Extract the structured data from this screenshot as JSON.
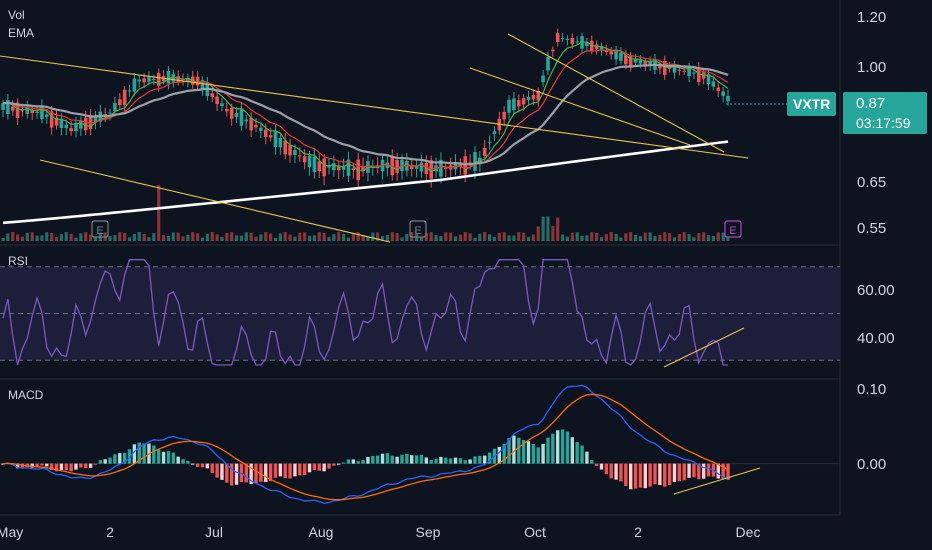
{
  "panes": {
    "price": {
      "labels": [
        "Vol",
        "EMA"
      ],
      "ticks": [
        "1.20",
        "1.00",
        "0.65",
        "0.55"
      ]
    },
    "rsi": {
      "label": "RSI",
      "ticks": [
        "60.00",
        "40.00"
      ]
    },
    "macd": {
      "label": "MACD",
      "ticks": [
        "0.10",
        "0.00"
      ]
    }
  },
  "symbol_tag": "VXTR",
  "last_price": "0.87",
  "countdown": "03:17:59",
  "earnings_markers": [
    "E",
    "E",
    "E"
  ],
  "x_axis": [
    "May",
    "2",
    "Jul",
    "Aug",
    "Sep",
    "Oct",
    "2",
    "Dec"
  ],
  "chart_data": {
    "type": "line",
    "title": "",
    "xlabel": "",
    "ylabel": "",
    "price_ylim": [
      0.52,
      1.25
    ],
    "series": [
      {
        "name": "EMA",
        "values": [
          0.86,
          0.85,
          0.84,
          0.84,
          0.85,
          0.88,
          0.9,
          0.92,
          0.93,
          0.9,
          0.85,
          0.8,
          0.76,
          0.73,
          0.71,
          0.7,
          0.7,
          0.69,
          0.7,
          0.72,
          0.75,
          0.8,
          0.87,
          0.95,
          1.02,
          1.03,
          1.02,
          1.0,
          0.98,
          0.95,
          0.92,
          0.9,
          0.89,
          0.89
        ]
      }
    ],
    "rsi_ylim": [
      25,
      75
    ],
    "macd_ylim": [
      -0.05,
      0.1
    ],
    "colors": {
      "up": "#26a69a",
      "down": "#ef5350",
      "ema_white": "#ffffff",
      "ema_grey": "#9aa0a6",
      "ema_green": "#4caf50",
      "ema_red": "#e53935",
      "trendline": "#e6c44a",
      "rsi": "#7e57c2",
      "macd": "#2962ff",
      "signal": "#ff6d00",
      "accent": "#26a69a"
    }
  }
}
